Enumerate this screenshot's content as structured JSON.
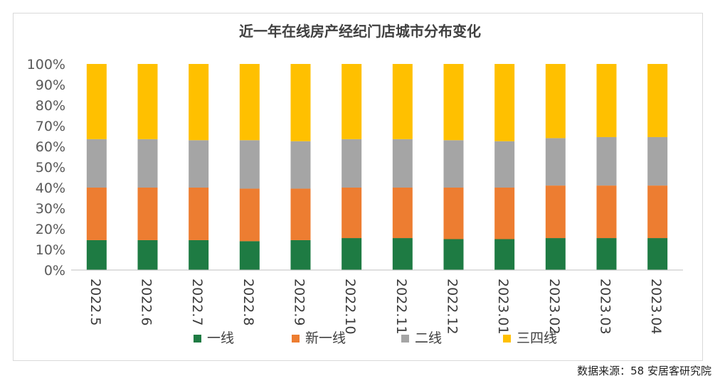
{
  "chart_data": {
    "type": "bar",
    "stacked": true,
    "title": "近一年在线房产经纪门店城市分布变化",
    "categories": [
      "2022.5",
      "2022.6",
      "2022.7",
      "2022.8",
      "2022.9",
      "2022.10",
      "2022.11",
      "2022.12",
      "2023.01",
      "2023.02",
      "2023.03",
      "2023.04"
    ],
    "series": [
      {
        "name": "一线",
        "color": "#1e7b43",
        "values": [
          14.5,
          14.5,
          14.5,
          14,
          14.5,
          15.5,
          15.5,
          15,
          15,
          15.5,
          15.5,
          15.5
        ]
      },
      {
        "name": "新一线",
        "color": "#ed7d31",
        "values": [
          25.5,
          25.5,
          25.5,
          25.5,
          25,
          24.5,
          24.5,
          25,
          25,
          25.5,
          25.5,
          25.5
        ]
      },
      {
        "name": "二线",
        "color": "#a5a5a5",
        "values": [
          23.5,
          23.5,
          23,
          23.5,
          23,
          23.5,
          23.5,
          23,
          22.5,
          23,
          23.5,
          23.5
        ]
      },
      {
        "name": "三四线",
        "color": "#ffc000",
        "values": [
          36.5,
          36.5,
          37,
          37,
          37.5,
          36.5,
          36.5,
          37,
          37.5,
          36,
          35.5,
          35.5
        ]
      }
    ],
    "yticks": [
      "0%",
      "10%",
      "20%",
      "30%",
      "40%",
      "50%",
      "60%",
      "70%",
      "80%",
      "90%",
      "100%"
    ],
    "ylim": [
      0,
      100
    ],
    "legend_position": "bottom"
  },
  "source": "数据来源：58 安居客研究院"
}
